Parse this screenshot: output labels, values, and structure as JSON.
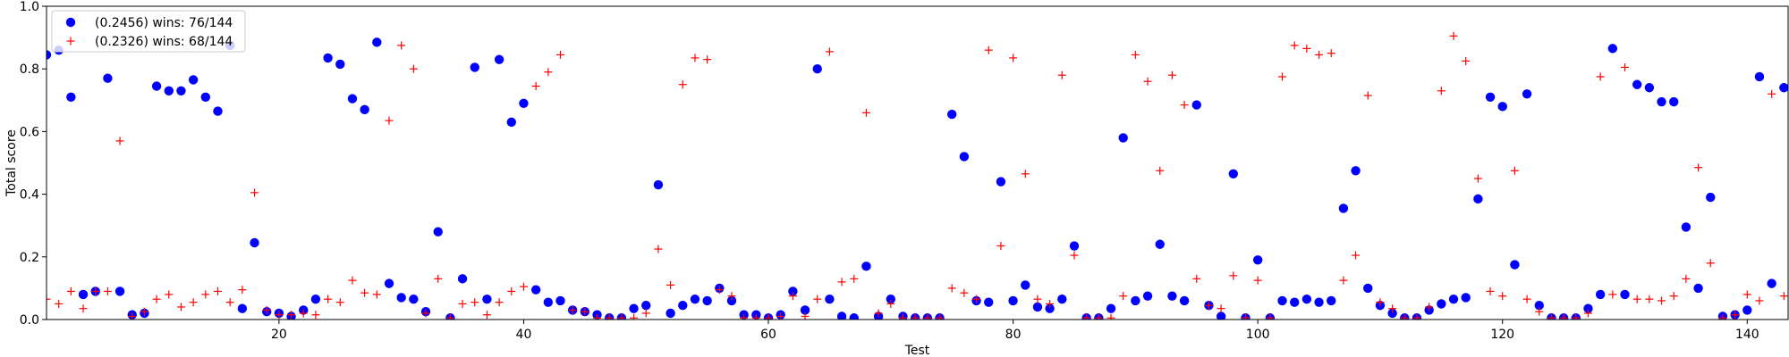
{
  "chart_data": {
    "type": "scatter",
    "title": "",
    "xlabel": "Test",
    "ylabel": "Total score",
    "xlim": [
      1,
      144
    ],
    "ylim": [
      0.0,
      1.0
    ],
    "xticks": [
      20,
      40,
      60,
      80,
      100,
      120,
      140
    ],
    "yticks": [
      0.0,
      0.2,
      0.4,
      0.6,
      0.8,
      1.0
    ],
    "grid": false,
    "legend_position": "top-left",
    "x": [
      1,
      2,
      3,
      4,
      5,
      6,
      7,
      8,
      9,
      10,
      11,
      12,
      13,
      14,
      15,
      16,
      17,
      18,
      19,
      20,
      21,
      22,
      23,
      24,
      25,
      26,
      27,
      28,
      29,
      30,
      31,
      32,
      33,
      34,
      35,
      36,
      37,
      38,
      39,
      40,
      41,
      42,
      43,
      44,
      45,
      46,
      47,
      48,
      49,
      50,
      51,
      52,
      53,
      54,
      55,
      56,
      57,
      58,
      59,
      60,
      61,
      62,
      63,
      64,
      65,
      66,
      67,
      68,
      69,
      70,
      71,
      72,
      73,
      74,
      75,
      76,
      77,
      78,
      79,
      80,
      81,
      82,
      83,
      84,
      85,
      86,
      87,
      88,
      89,
      90,
      91,
      92,
      93,
      94,
      95,
      96,
      97,
      98,
      99,
      100,
      101,
      102,
      103,
      104,
      105,
      106,
      107,
      108,
      109,
      110,
      111,
      112,
      113,
      114,
      115,
      116,
      117,
      118,
      119,
      120,
      121,
      122,
      123,
      124,
      125,
      126,
      127,
      128,
      129,
      130,
      131,
      132,
      133,
      134,
      135,
      136,
      137,
      138,
      139,
      140,
      141,
      142,
      143,
      144
    ],
    "series": [
      {
        "name": "(0.2456) wins: 76/144",
        "marker": "circle",
        "color": "#0000ff",
        "values": [
          0.845,
          0.86,
          0.71,
          0.08,
          0.09,
          0.77,
          0.09,
          0.015,
          0.02,
          0.745,
          0.73,
          0.73,
          0.765,
          0.71,
          0.665,
          0.875,
          0.035,
          0.245,
          0.025,
          0.02,
          0.01,
          0.03,
          0.065,
          0.835,
          0.815,
          0.705,
          0.67,
          0.885,
          0.115,
          0.07,
          0.065,
          0.025,
          0.28,
          0.005,
          0.13,
          0.805,
          0.065,
          0.83,
          0.63,
          0.69,
          0.095,
          0.055,
          0.06,
          0.03,
          0.025,
          0.015,
          0.005,
          0.005,
          0.035,
          0.045,
          0.43,
          0.02,
          0.045,
          0.065,
          0.06,
          0.1,
          0.06,
          0.015,
          0.015,
          0.005,
          0.015,
          0.09,
          0.03,
          0.8,
          0.065,
          0.01,
          0.005,
          0.17,
          0.01,
          0.065,
          0.01,
          0.005,
          0.005,
          0.005,
          0.655,
          0.52,
          0.06,
          0.055,
          0.44,
          0.06,
          0.11,
          0.04,
          0.035,
          0.065,
          0.235,
          0.005,
          0.005,
          0.035,
          0.58,
          0.06,
          0.075,
          0.24,
          0.075,
          0.06,
          0.685,
          0.045,
          0.01,
          0.465,
          0.005,
          0.19,
          0.005,
          0.06,
          0.055,
          0.065,
          0.055,
          0.06,
          0.355,
          0.475,
          0.1,
          0.045,
          0.02,
          0.005,
          0.005,
          0.03,
          0.05,
          0.065,
          0.07,
          0.385,
          0.71,
          0.68,
          0.175,
          0.72,
          0.045,
          0.005,
          0.005,
          0.005,
          0.035,
          0.08,
          0.865,
          0.08,
          0.75,
          0.74,
          0.695,
          0.695,
          0.295,
          0.1,
          0.39,
          0.01,
          0.015,
          0.03,
          0.775,
          0.115,
          0.74,
          0.685
        ]
      },
      {
        "name": "(0.2326) wins: 68/144",
        "marker": "plus",
        "color": "#ff0000",
        "values": [
          0.065,
          0.05,
          0.09,
          0.035,
          0.09,
          0.09,
          0.57,
          0.01,
          0.025,
          0.065,
          0.08,
          0.04,
          0.055,
          0.08,
          0.09,
          0.055,
          0.095,
          0.405,
          0.03,
          0.015,
          0.015,
          0.02,
          0.015,
          0.065,
          0.055,
          0.125,
          0.085,
          0.08,
          0.635,
          0.875,
          0.8,
          0.02,
          0.13,
          0.005,
          0.05,
          0.055,
          0.015,
          0.055,
          0.09,
          0.105,
          0.745,
          0.79,
          0.845,
          0.03,
          0.025,
          0.005,
          0.005,
          0.005,
          0.005,
          0.02,
          0.225,
          0.11,
          0.75,
          0.835,
          0.83,
          0.095,
          0.075,
          0.005,
          0.005,
          0.005,
          0.01,
          0.075,
          0.01,
          0.065,
          0.855,
          0.12,
          0.13,
          0.66,
          0.02,
          0.05,
          0.005,
          0.005,
          0.005,
          0.005,
          0.1,
          0.085,
          0.065,
          0.86,
          0.235,
          0.835,
          0.465,
          0.065,
          0.05,
          0.78,
          0.205,
          0.005,
          0.005,
          0.005,
          0.075,
          0.845,
          0.76,
          0.475,
          0.78,
          0.685,
          0.13,
          0.045,
          0.035,
          0.14,
          0.005,
          0.125,
          0.005,
          0.775,
          0.875,
          0.865,
          0.845,
          0.85,
          0.125,
          0.205,
          0.715,
          0.055,
          0.035,
          0.005,
          0.005,
          0.04,
          0.73,
          0.905,
          0.825,
          0.45,
          0.09,
          0.075,
          0.475,
          0.065,
          0.025,
          0.005,
          0.005,
          0.005,
          0.02,
          0.775,
          0.08,
          0.805,
          0.065,
          0.065,
          0.06,
          0.075,
          0.13,
          0.485,
          0.18,
          0.005,
          0.015,
          0.08,
          0.06,
          0.72,
          0.075,
          0.065
        ]
      }
    ]
  }
}
